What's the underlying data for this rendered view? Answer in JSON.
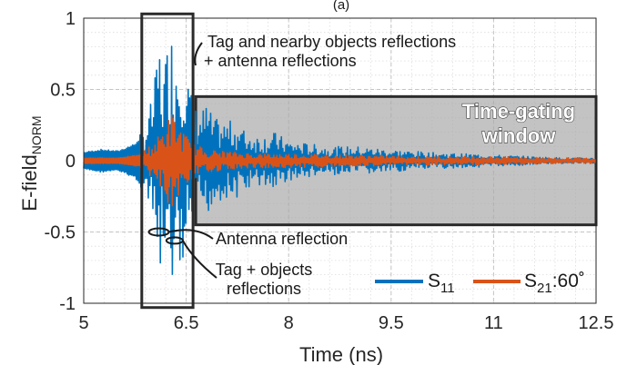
{
  "chart_data": {
    "type": "line",
    "panel_label": "(a)",
    "xlabel": "Time (ns)",
    "ylabel_main": "E-field",
    "ylabel_sub": "NORM",
    "xlim": [
      5,
      12.5
    ],
    "ylim": [
      -1,
      1
    ],
    "xticks": [
      5,
      6.5,
      8,
      9.5,
      11,
      12.5
    ],
    "xtick_labels": [
      "5",
      "6.5",
      "8",
      "9.5",
      "11",
      "12.5"
    ],
    "yticks": [
      1,
      0.5,
      0,
      -0.5,
      -1
    ],
    "ytick_labels": [
      "1",
      "0.5",
      "0",
      "-0.5",
      "-1"
    ],
    "grid": true,
    "legend_placement": "bottom-right",
    "series": [
      {
        "name": "S11",
        "label_main": "S",
        "label_sub": "11",
        "color": "#0072BD",
        "x": [
          5.0,
          5.25,
          5.5,
          5.75,
          5.9,
          6.0,
          6.05,
          6.1,
          6.15,
          6.2,
          6.25,
          6.3,
          6.35,
          6.4,
          6.45,
          6.5,
          6.55,
          6.6,
          6.7,
          6.8,
          6.9,
          7.0,
          7.2,
          7.4,
          7.6,
          7.8,
          8.0,
          8.3,
          8.6,
          9.0,
          9.5,
          10.0,
          10.5,
          11.0,
          11.5,
          12.0,
          12.5
        ],
        "envelope": [
          0.06,
          0.08,
          0.07,
          0.12,
          0.25,
          0.45,
          0.6,
          0.9,
          0.62,
          0.75,
          0.97,
          0.9,
          0.85,
          0.8,
          0.95,
          0.7,
          0.55,
          0.4,
          0.35,
          0.4,
          0.3,
          0.28,
          0.28,
          0.2,
          0.18,
          0.2,
          0.14,
          0.12,
          0.1,
          0.1,
          0.08,
          0.06,
          0.05,
          0.04,
          0.03,
          0.02,
          0.02
        ]
      },
      {
        "name": "S21:60°",
        "label_main": "S",
        "label_sub": "21",
        "label_suffix": ":60˚",
        "color": "#D95319",
        "x": [
          5.0,
          5.5,
          5.8,
          6.0,
          6.1,
          6.2,
          6.3,
          6.4,
          6.5,
          6.6,
          6.8,
          7.0,
          7.5,
          8.0,
          9.0,
          10.0,
          11.0,
          12.0,
          12.5
        ],
        "envelope": [
          0.02,
          0.02,
          0.04,
          0.12,
          0.18,
          0.28,
          0.35,
          0.25,
          0.18,
          0.12,
          0.08,
          0.07,
          0.05,
          0.05,
          0.04,
          0.03,
          0.03,
          0.02,
          0.02
        ]
      }
    ],
    "annotations": [
      {
        "text_lines": [
          "Tag and nearby objects reflections",
          "+ antenna reflections"
        ]
      },
      {
        "text_lines": [
          "Antenna reflection"
        ]
      },
      {
        "text_lines": [
          "Tag + objects",
          "reflections"
        ]
      },
      {
        "text_lines": [
          "Time-gating",
          "window"
        ]
      }
    ],
    "regions": {
      "tag_box": {
        "x": [
          5.85,
          6.6
        ],
        "y": [
          -1.03,
          1.03
        ]
      },
      "gating_window": {
        "x": [
          6.6,
          12.5
        ],
        "y": [
          -0.45,
          0.45
        ]
      }
    },
    "markers": {
      "antenna_ellipse": {
        "x": 6.1,
        "y": -0.5
      },
      "tag_ellipse": {
        "x": 6.33,
        "y": -0.56
      }
    }
  }
}
